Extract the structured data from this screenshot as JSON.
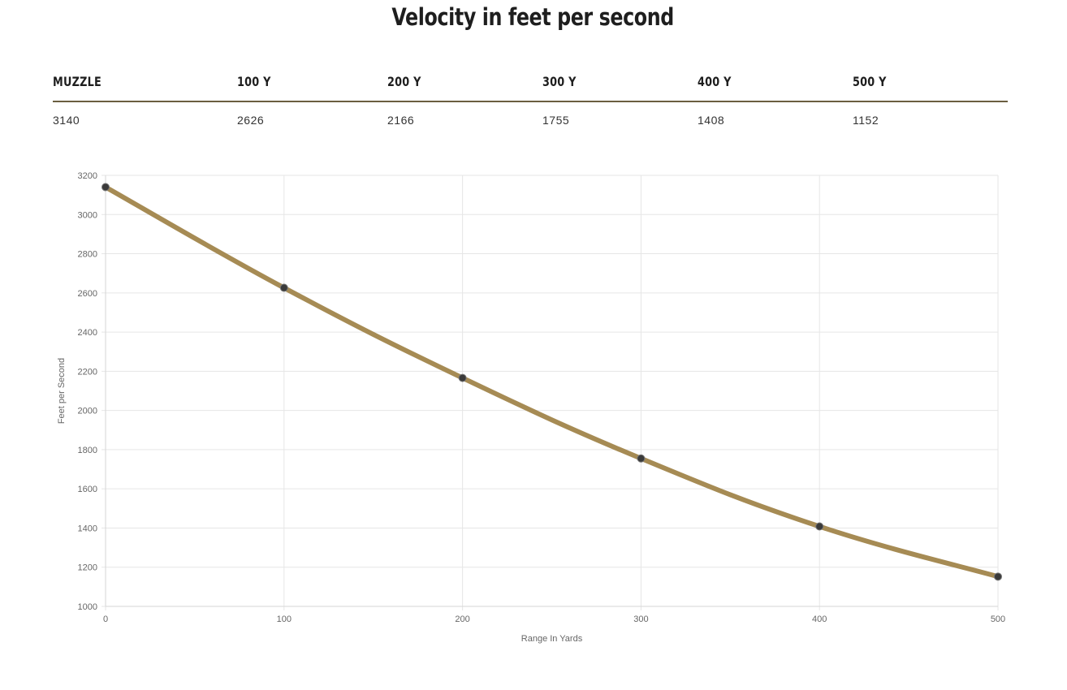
{
  "page": {
    "title": "Velocity in feet per second"
  },
  "table": {
    "headers": [
      "MUZZLE",
      "100 Y",
      "200 Y",
      "300 Y",
      "400 Y",
      "500 Y"
    ],
    "values": [
      "3140",
      "2626",
      "2166",
      "1755",
      "1408",
      "1152"
    ]
  },
  "chart_data": {
    "type": "line",
    "x": [
      0,
      100,
      200,
      300,
      400,
      500
    ],
    "series": [
      {
        "values": [
          3140,
          2626,
          2166,
          1755,
          1408,
          1152
        ]
      }
    ],
    "xlabel": "Range In Yards",
    "ylabel": "Feet per Second",
    "xlim": [
      0,
      500
    ],
    "ylim": [
      1000,
      3200
    ],
    "x_ticks": [
      "0",
      "100",
      "200",
      "300",
      "400",
      "500"
    ],
    "y_ticks": [
      "1000",
      "1200",
      "1400",
      "1600",
      "1800",
      "2000",
      "2200",
      "2400",
      "2600",
      "2800",
      "3000",
      "3200"
    ],
    "grid": true,
    "legend": "none",
    "line_color": "#a68b54",
    "point_color": "#3a3a3a",
    "grid_color": "#e6e6e6"
  }
}
